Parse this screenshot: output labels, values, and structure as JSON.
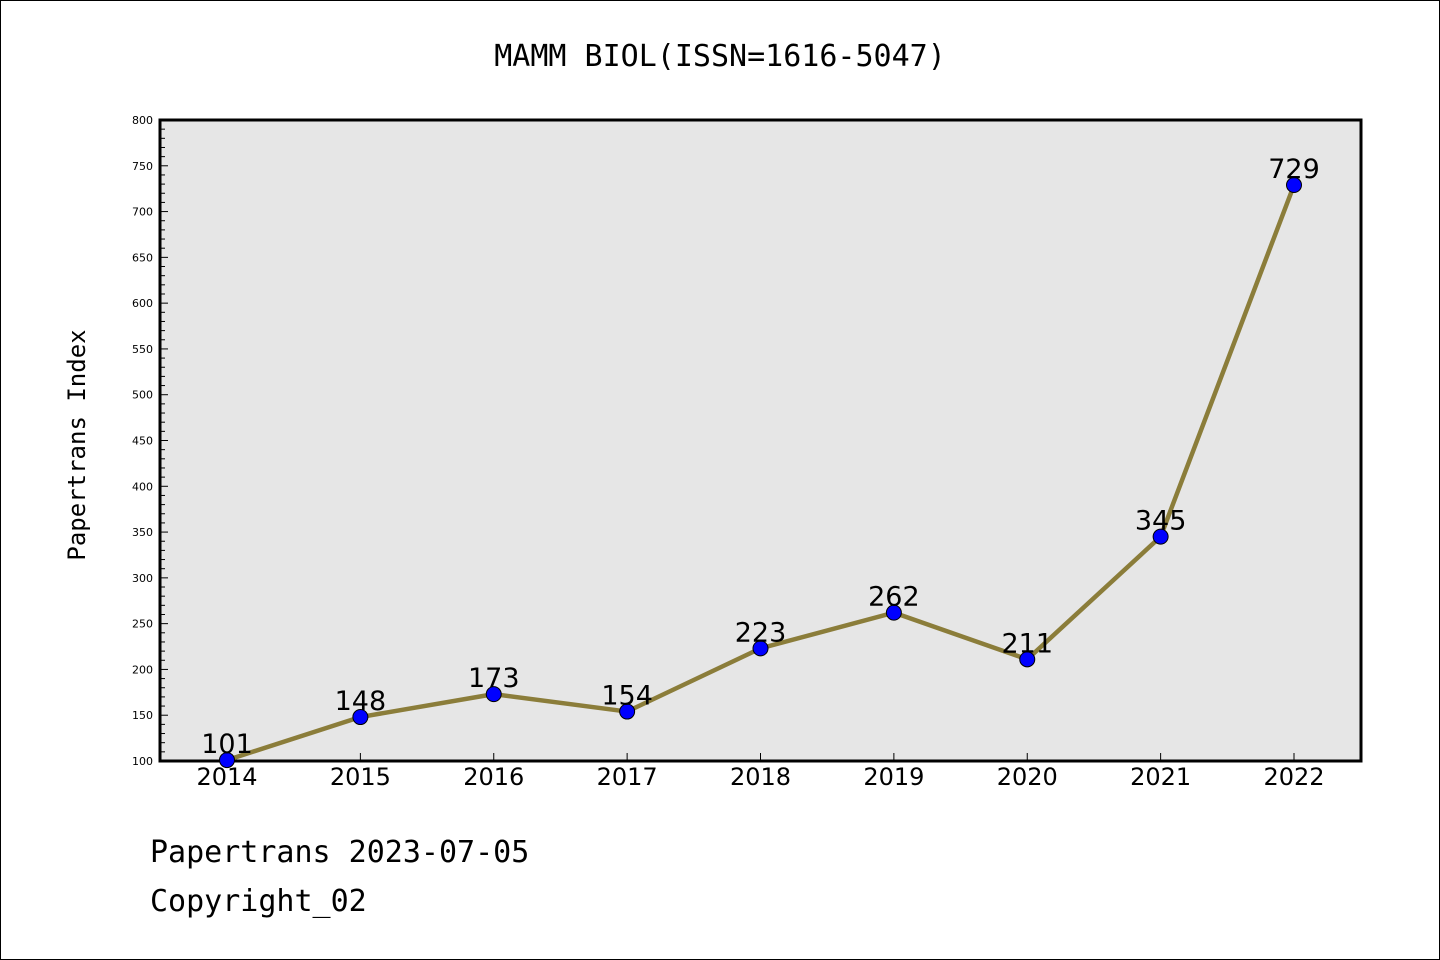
{
  "footer": {
    "date_line": "Papertrans 2023-07-05",
    "copyright_line": "Copyright_02"
  },
  "chart_data": {
    "type": "line",
    "title": "MAMM BIOL(ISSN=1616-5047)",
    "xlabel": "",
    "ylabel": "Papertrans Index",
    "categories": [
      "2014",
      "2015",
      "2016",
      "2017",
      "2018",
      "2019",
      "2020",
      "2021",
      "2022"
    ],
    "series": [
      {
        "values": [
          101,
          148,
          173,
          154,
          223,
          262,
          211,
          345,
          729
        ]
      }
    ],
    "data_labels": [
      "101",
      "148",
      "173",
      "154",
      "223",
      "262",
      "211",
      "345",
      "729"
    ],
    "ylim": [
      100,
      800
    ],
    "yticks": [
      "100",
      "150",
      "200",
      "250",
      "300",
      "350",
      "400",
      "450",
      "500",
      "550",
      "600",
      "650",
      "700",
      "750",
      "800"
    ],
    "grid": false,
    "legend": "none",
    "colors": {
      "line": "#8B7D3A",
      "marker": "#0000FF",
      "marker_edge": "#000000",
      "plot_background": "#E6E6E6"
    }
  }
}
